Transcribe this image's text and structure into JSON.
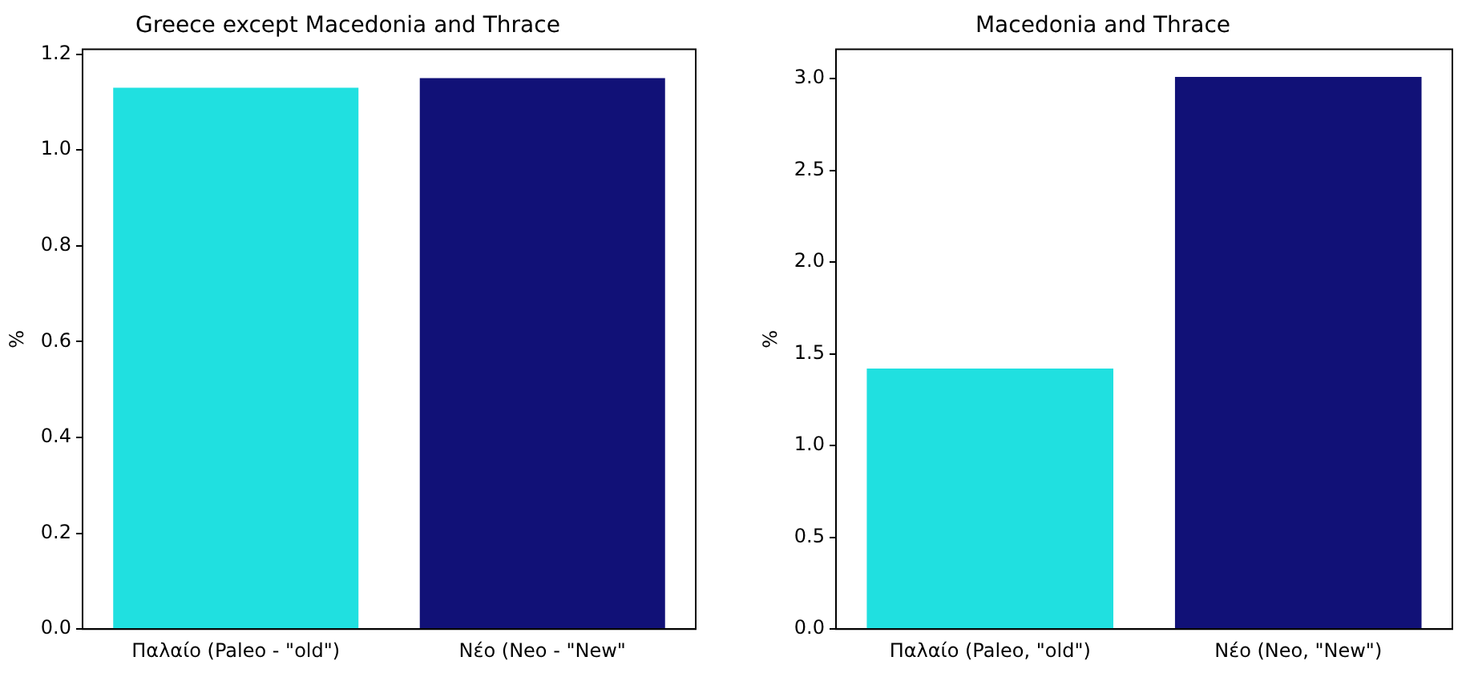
{
  "chart_data": [
    {
      "type": "bar",
      "title": "Greece except Macedonia and Thrace",
      "ylabel": "%",
      "categories": [
        "Παλαίο (Paleo - \"old\")",
        "Νέο (Neo - \"New\""
      ],
      "values": [
        1.13,
        1.15
      ],
      "colors": [
        "#20e0e0",
        "#111177"
      ],
      "ylim": [
        0,
        1.21
      ],
      "yticks": [
        {
          "value": 0,
          "label": "0.0"
        },
        {
          "value": 0.2,
          "label": "0.2"
        },
        {
          "value": 0.4,
          "label": "0.4"
        },
        {
          "value": 0.6,
          "label": "0.6"
        },
        {
          "value": 0.8,
          "label": "0.8"
        },
        {
          "value": 1,
          "label": "1.0"
        },
        {
          "value": 1.2,
          "label": "1.2"
        }
      ],
      "grid": false,
      "legend": false
    },
    {
      "type": "bar",
      "title": "Macedonia and Thrace",
      "ylabel": "%",
      "categories": [
        "Παλαίο (Paleo, \"old\")",
        "Νέο (Neo, \"New\")"
      ],
      "values": [
        1.42,
        3.01
      ],
      "colors": [
        "#20e0e0",
        "#111177"
      ],
      "ylim": [
        0,
        3.16
      ],
      "yticks": [
        {
          "value": 0,
          "label": "0.0"
        },
        {
          "value": 0.5,
          "label": "0.5"
        },
        {
          "value": 1,
          "label": "1.0"
        },
        {
          "value": 1.5,
          "label": "1.5"
        },
        {
          "value": 2,
          "label": "2.0"
        },
        {
          "value": 2.5,
          "label": "2.5"
        },
        {
          "value": 3,
          "label": "3.0"
        }
      ],
      "grid": false,
      "legend": false
    }
  ]
}
